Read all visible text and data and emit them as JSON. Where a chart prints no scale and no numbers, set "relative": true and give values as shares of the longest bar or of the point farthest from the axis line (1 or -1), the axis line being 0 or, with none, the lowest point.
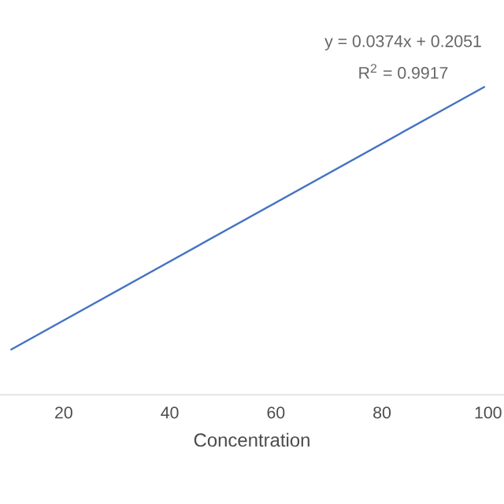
{
  "chart_data": {
    "type": "line",
    "relative": true,
    "xlabel": "Concentration",
    "xlim": [
      8,
      103
    ],
    "xticks": [
      20,
      40,
      60,
      80,
      100
    ],
    "series": [
      {
        "color": "#4472c4",
        "x": [
          10,
          99.4
        ],
        "values": [
          0.146,
          1
        ]
      }
    ],
    "annotations": [
      "y = 0.0374x + 0.2051",
      "R$^{2}$ = 0.9917"
    ],
    "marker": "none",
    "line_style": "solid"
  }
}
